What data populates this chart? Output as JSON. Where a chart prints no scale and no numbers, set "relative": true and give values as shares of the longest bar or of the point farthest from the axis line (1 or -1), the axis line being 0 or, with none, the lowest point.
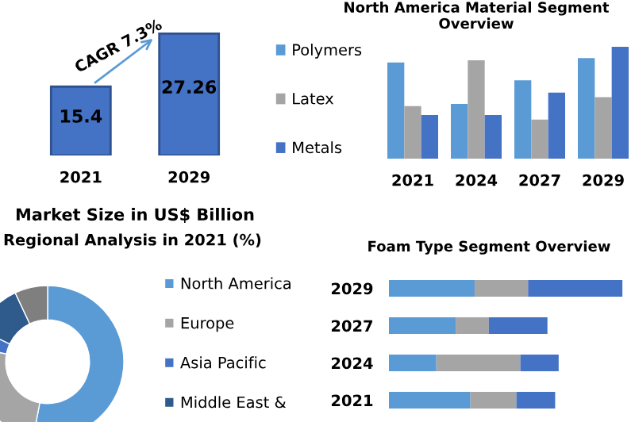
{
  "chart_data": [
    {
      "type": "bar",
      "categories": [
        "2021",
        "2029"
      ],
      "values": [
        15.4,
        27.26
      ],
      "color": "#4472c4",
      "data_labels": true,
      "xlabel": "Market Size in US$ Billion",
      "annotations": [
        "CAGR 7.3%"
      ],
      "tick_labels": "x"
    },
    {
      "type": "bar",
      "title": "North America Material Segment Overview",
      "categories": [
        "2021",
        "2024",
        "2027",
        "2029"
      ],
      "relative": true,
      "legend": "left",
      "series": [
        {
          "name": "Polymers",
          "color": "#5b9bd5",
          "values": [
            0.86,
            0.49,
            0.7,
            0.9
          ]
        },
        {
          "name": "Latex",
          "color": "#a5a5a5",
          "values": [
            0.47,
            0.88,
            0.35,
            0.55
          ]
        },
        {
          "name": "Metals",
          "color": "#4472c4",
          "values": [
            0.39,
            0.39,
            0.59,
            1
          ]
        }
      ]
    },
    {
      "type": "donut",
      "title": "Regional Analysis in 2021 (%)",
      "categories": [
        "North America",
        "Europe",
        "Asia Pacific",
        "Middle East &",
        null
      ],
      "values": [
        53,
        25,
        4,
        11,
        7
      ],
      "colors": [
        "#5b9bd5",
        "#a5a5a5",
        "#4472c4",
        "#2e5a8c",
        "#7f7f7f"
      ],
      "legend": "right"
    },
    {
      "type": "bar",
      "title": "Foam Type Segment Overview",
      "orientation": "horizontal",
      "stacked": true,
      "relative": true,
      "categories": [
        "2029",
        "2027",
        "2024",
        "2021"
      ],
      "series": [
        {
          "color": "#5b9bd5",
          "values": [
            0.367,
            0.286,
            0.203,
            0.349
          ]
        },
        {
          "color": "#a5a5a5",
          "values": [
            0.229,
            0.142,
            0.36,
            0.197
          ]
        },
        {
          "color": "#4472c4",
          "values": [
            0.404,
            0.251,
            0.164,
            0.166
          ]
        }
      ]
    }
  ]
}
